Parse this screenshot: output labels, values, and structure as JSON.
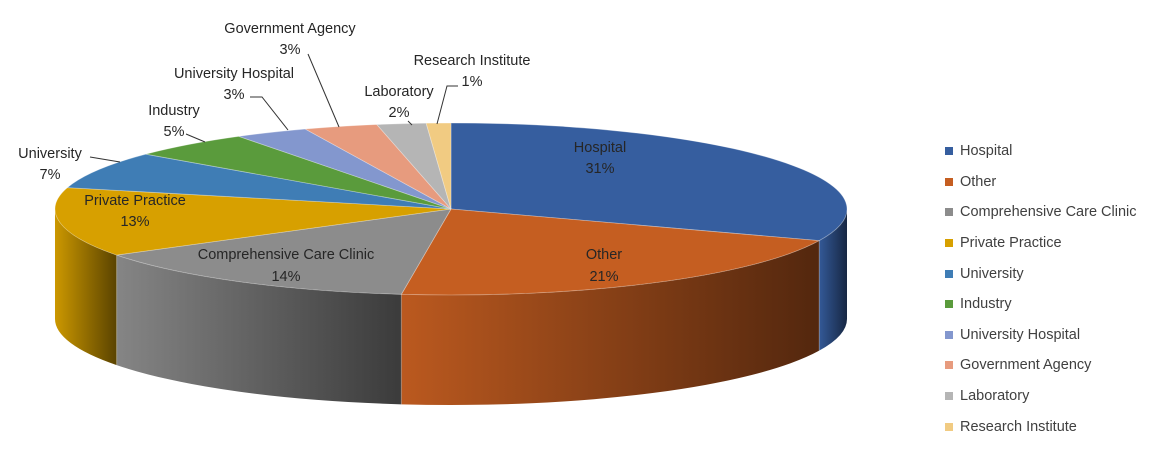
{
  "chart_data": {
    "type": "pie",
    "style": "3d",
    "title": "",
    "slices": [
      {
        "name": "Hospital",
        "value": 31,
        "label": "31%",
        "color": "#365E9F"
      },
      {
        "name": "Other",
        "value": 21,
        "label": "21%",
        "color": "#C55E21"
      },
      {
        "name": "Comprehensive Care Clinic",
        "value": 14,
        "label": "14%",
        "color": "#8C8C8C"
      },
      {
        "name": "Private Practice",
        "value": 13,
        "label": "13%",
        "color": "#D7A000"
      },
      {
        "name": "University",
        "value": 7,
        "label": "7%",
        "color": "#3F7DB5"
      },
      {
        "name": "Industry",
        "value": 5,
        "label": "5%",
        "color": "#5A9B3C"
      },
      {
        "name": "University Hospital",
        "value": 3,
        "label": "3%",
        "color": "#8397CE"
      },
      {
        "name": "Government Agency",
        "value": 3,
        "label": "3%",
        "color": "#E79B7E"
      },
      {
        "name": "Laboratory",
        "value": 2,
        "label": "2%",
        "color": "#B5B5B5"
      },
      {
        "name": "Research Institute",
        "value": 1,
        "label": "1%",
        "color": "#F1CB82"
      }
    ],
    "legend_position": "right"
  }
}
